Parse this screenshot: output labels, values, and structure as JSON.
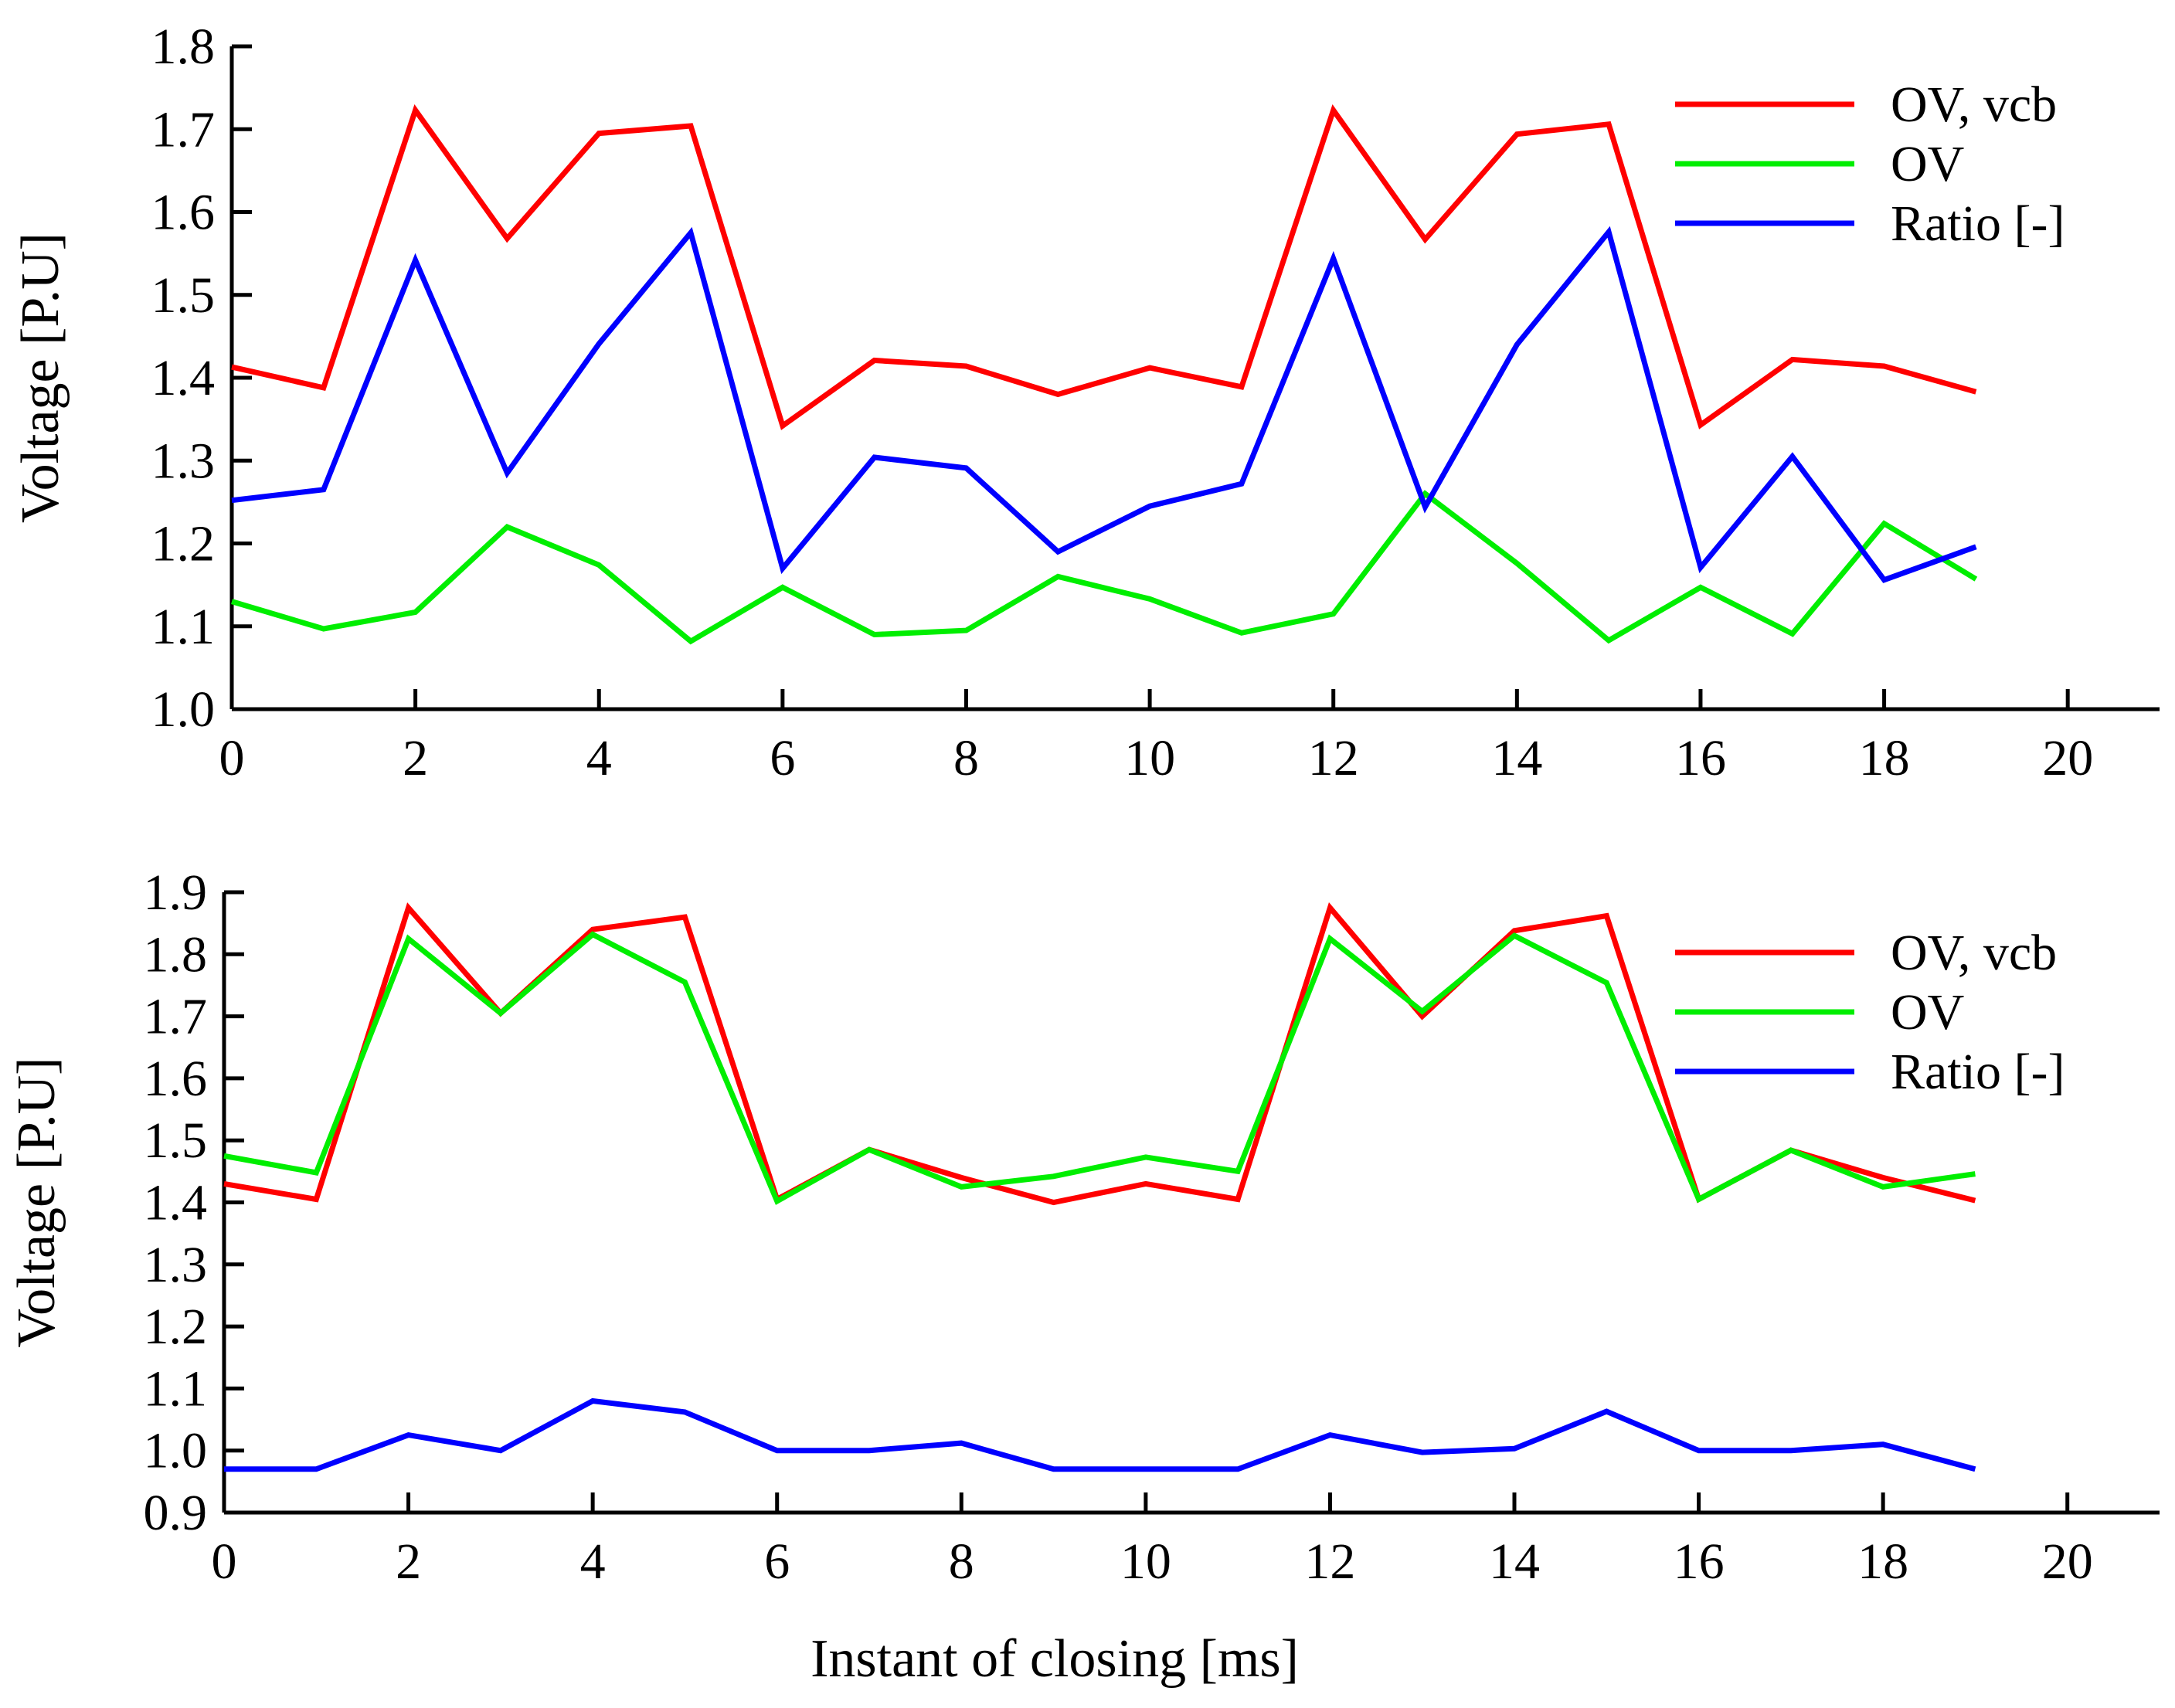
{
  "xlabel": "Instant of closing [ms]",
  "colors": {
    "ov_vcb": "#ff0000",
    "ov": "#00ee00",
    "ratio": "#0000ff",
    "axis": "#000000"
  },
  "chart_data": [
    {
      "type": "line",
      "title": "",
      "xlabel": "",
      "ylabel": "Voltage [P.U]",
      "xlim": [
        0,
        21
      ],
      "ylim": [
        1.0,
        1.8
      ],
      "xticks": [
        0,
        2,
        4,
        6,
        8,
        10,
        12,
        14,
        16,
        18,
        20
      ],
      "xtick_labels": [
        "0",
        "2",
        "4",
        "6",
        "8",
        "10",
        "12",
        "14",
        "16",
        "18",
        "20"
      ],
      "yticks": [
        1.0,
        1.1,
        1.2,
        1.3,
        1.4,
        1.5,
        1.6,
        1.7,
        1.8
      ],
      "ytick_labels": [
        "1.0",
        "1.1",
        "1.2",
        "1.3",
        "1.4",
        "1.5",
        "1.6",
        "1.7",
        "1.8"
      ],
      "legend_position": "top-right",
      "x": [
        0,
        1,
        2,
        3,
        4,
        5,
        6,
        7,
        8,
        9,
        10,
        11,
        12,
        13,
        14,
        15,
        16,
        17,
        18,
        19
      ],
      "series": [
        {
          "name": "OV, vcb",
          "color": "#ff0000",
          "values": [
            1.413,
            1.388,
            1.723,
            1.568,
            1.695,
            1.704,
            1.342,
            1.421,
            1.414,
            1.38,
            1.412,
            1.389,
            1.723,
            1.567,
            1.694,
            1.706,
            1.343,
            1.422,
            1.414,
            1.383
          ]
        },
        {
          "name": "OV",
          "color": "#00ee00",
          "values": [
            1.13,
            1.097,
            1.117,
            1.22,
            1.174,
            1.082,
            1.147,
            1.09,
            1.095,
            1.16,
            1.133,
            1.092,
            1.115,
            1.26,
            1.176,
            1.083,
            1.147,
            1.091,
            1.224,
            1.157
          ]
        },
        {
          "name": "Ratio [-]",
          "color": "#0000ff",
          "values": [
            1.252,
            1.265,
            1.542,
            1.285,
            1.441,
            1.575,
            1.17,
            1.304,
            1.291,
            1.19,
            1.245,
            1.272,
            1.544,
            1.244,
            1.44,
            1.576,
            1.171,
            1.305,
            1.156,
            1.196
          ]
        }
      ]
    },
    {
      "type": "line",
      "title": "",
      "xlabel": "Instant of closing [ms]",
      "ylabel": "Voltage [P.U]",
      "xlim": [
        0,
        21
      ],
      "ylim": [
        0.9,
        1.9
      ],
      "xticks": [
        0,
        2,
        4,
        6,
        8,
        10,
        12,
        14,
        16,
        18,
        20
      ],
      "xtick_labels": [
        "0",
        "2",
        "4",
        "6",
        "8",
        "10",
        "12",
        "14",
        "16",
        "18",
        "20"
      ],
      "yticks": [
        0.9,
        1.0,
        1.1,
        1.2,
        1.3,
        1.4,
        1.5,
        1.6,
        1.7,
        1.8,
        1.9
      ],
      "ytick_labels": [
        "0.9",
        "1.0",
        "1.1",
        "1.2",
        "1.3",
        "1.4",
        "1.5",
        "1.6",
        "1.7",
        "1.8",
        "1.9"
      ],
      "legend_position": "top-right",
      "x": [
        0,
        1,
        2,
        3,
        4,
        5,
        6,
        7,
        8,
        9,
        10,
        11,
        12,
        13,
        14,
        15,
        16,
        17,
        18,
        19
      ],
      "series": [
        {
          "name": "OV, vcb",
          "color": "#ff0000",
          "values": [
            1.43,
            1.405,
            1.875,
            1.705,
            1.84,
            1.86,
            1.405,
            1.485,
            1.44,
            1.4,
            1.43,
            1.405,
            1.875,
            1.7,
            1.838,
            1.862,
            1.405,
            1.484,
            1.44,
            1.403
          ]
        },
        {
          "name": "OV",
          "color": "#00ee00",
          "values": [
            1.475,
            1.448,
            1.825,
            1.705,
            1.832,
            1.755,
            1.402,
            1.485,
            1.425,
            1.442,
            1.473,
            1.45,
            1.825,
            1.708,
            1.83,
            1.754,
            1.405,
            1.484,
            1.425,
            1.446
          ]
        },
        {
          "name": "Ratio [-]",
          "color": "#0000ff",
          "values": [
            0.97,
            0.97,
            1.025,
            1.0,
            1.08,
            1.062,
            1.0,
            1.0,
            1.012,
            0.97,
            0.97,
            0.97,
            1.025,
            0.997,
            1.003,
            1.063,
            1.0,
            1.0,
            1.01,
            0.97
          ]
        }
      ]
    }
  ]
}
